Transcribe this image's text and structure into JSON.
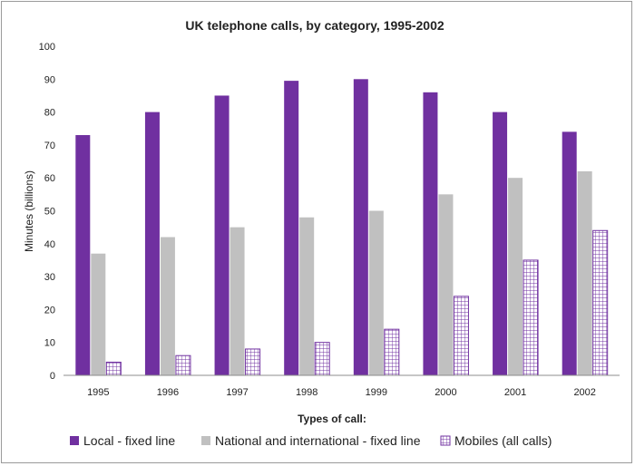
{
  "chart_data": {
    "type": "bar",
    "title": "UK telephone calls, by category, 1995-2002",
    "xlabel": "",
    "ylabel": "Minutes (billions)",
    "legend_title": "Types of call:",
    "legend_position": "bottom",
    "grid": false,
    "ylim": [
      0,
      100
    ],
    "yticks": [
      0,
      10,
      20,
      30,
      40,
      50,
      60,
      70,
      80,
      90,
      100
    ],
    "categories": [
      "1995",
      "1996",
      "1997",
      "1998",
      "1999",
      "2000",
      "2001",
      "2002"
    ],
    "series": [
      {
        "name": "Local - fixed line",
        "color": "#7030a0",
        "pattern": "solid",
        "values": [
          73,
          80,
          85,
          89.5,
          90,
          86,
          80,
          74
        ]
      },
      {
        "name": "National and international - fixed line",
        "color": "#c0c0c0",
        "pattern": "solid",
        "values": [
          37,
          42,
          45,
          48,
          50,
          55,
          60,
          62
        ]
      },
      {
        "name": "Mobiles (all calls)",
        "color": "#7030a0",
        "pattern": "grid",
        "values": [
          4,
          6,
          8,
          10,
          14,
          24,
          35,
          44
        ]
      }
    ]
  }
}
